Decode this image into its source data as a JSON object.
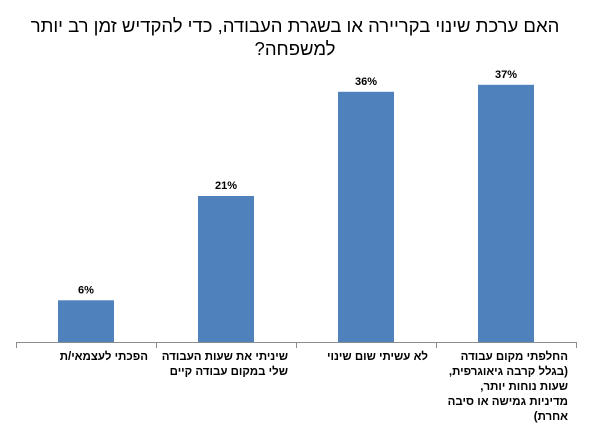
{
  "chart_data": {
    "type": "bar",
    "title": "האם ערכת שינוי בקריירה או בשגרת העבודה, כדי להקדיש זמן רב יותר למשפחה?",
    "xlabel": "",
    "ylabel": "",
    "ylim": [
      0,
      40
    ],
    "grid": false,
    "categories": [
      "הפכתי לעצמאי/ת",
      "שיניתי את שעות העבודה שלי במקום עבודה קיים",
      "לא עשיתי שום שינוי",
      "החלפתי מקום עבודה (בגלל קרבה גיאוגרפית, שעות נוחות יותר, מדיניות גמישה או סיבה אחרת)"
    ],
    "values": [
      6,
      21,
      36,
      37
    ],
    "data_labels": [
      "6%",
      "21%",
      "36%",
      "37%"
    ],
    "bar_color": "#4F81BD"
  }
}
